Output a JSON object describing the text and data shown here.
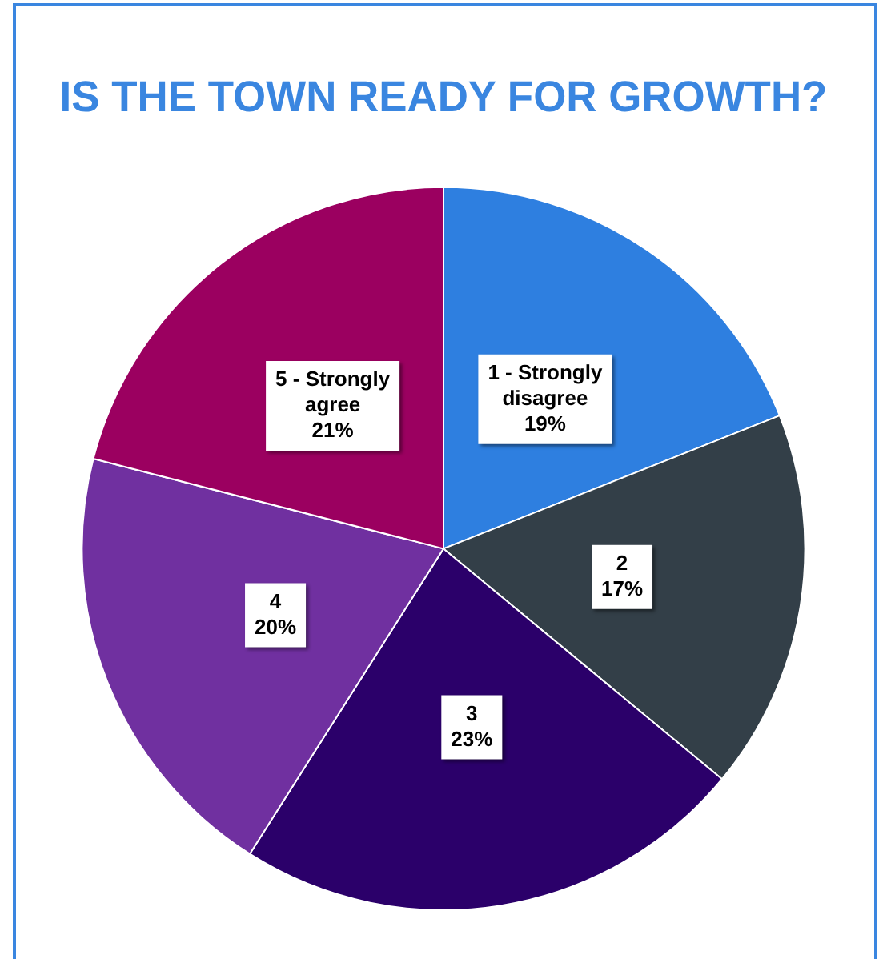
{
  "chart_data": {
    "type": "pie",
    "title": "IS THE TOWN READY FOR GROWTH?",
    "categories": [
      "1 - Strongly disagree",
      "2",
      "3",
      "4",
      "5 - Strongly agree"
    ],
    "values": [
      19,
      17,
      23,
      20,
      21
    ],
    "value_labels": [
      "19%",
      "17%",
      "23%",
      "20%",
      "21%"
    ],
    "colors": [
      "#2e7fe0",
      "#333f48",
      "#2b006a",
      "#7030a0",
      "#9b0060"
    ],
    "legend": false
  }
}
